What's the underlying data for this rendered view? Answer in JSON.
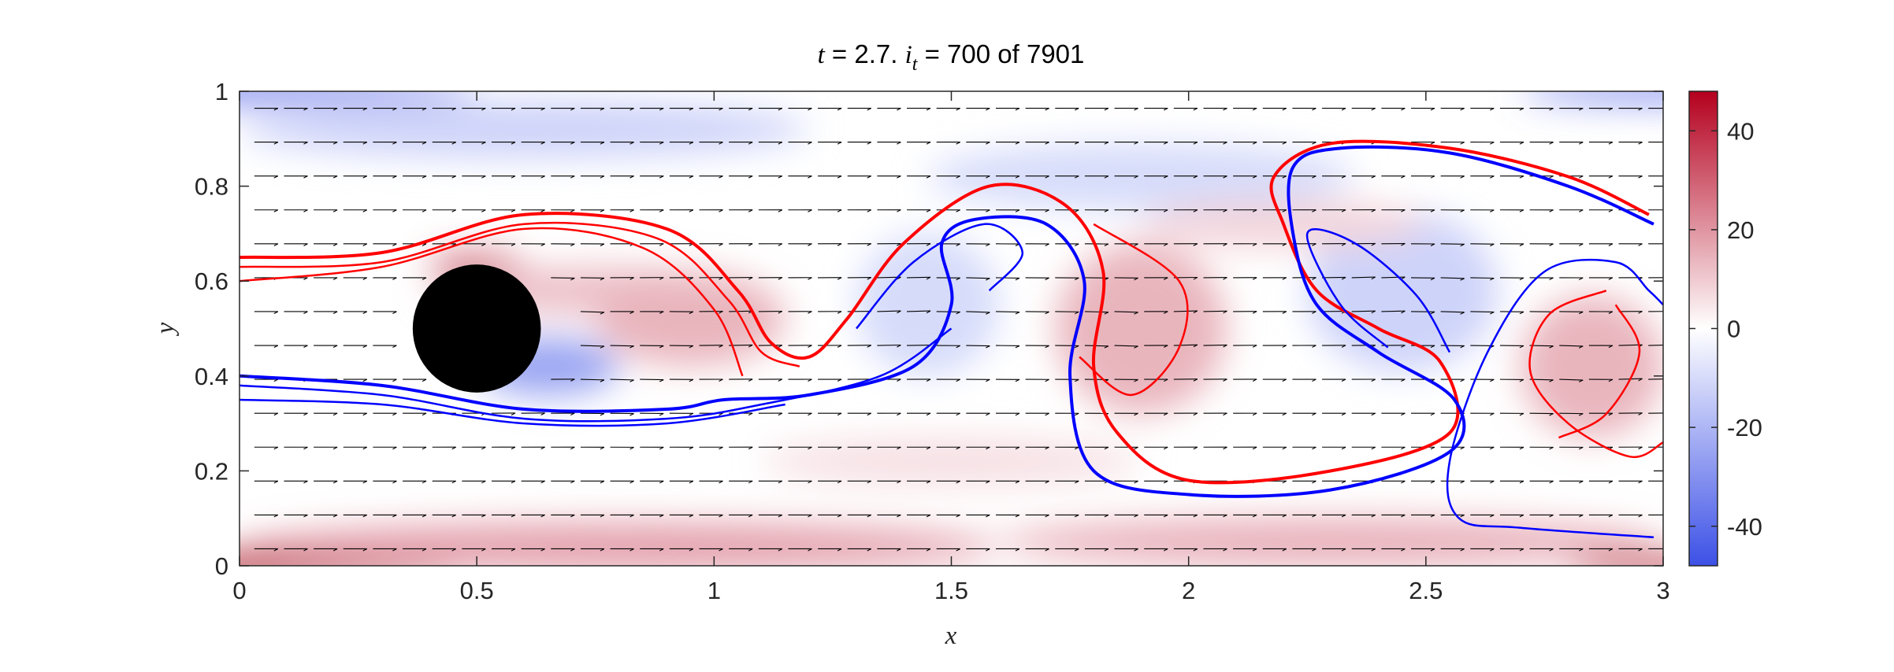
{
  "chart_data": {
    "type": "heatmap",
    "title": {
      "t_symbol": "t",
      "t_value": " = 2.7.  ",
      "it_symbol": "i",
      "it_subscript": "t",
      "it_value": " = 700 of 7901"
    },
    "xlabel": "x",
    "ylabel": "y",
    "xlim": [
      0,
      3
    ],
    "ylim": [
      0,
      1
    ],
    "xticks": [
      0,
      0.5,
      1,
      1.5,
      2,
      2.5,
      3
    ],
    "xtick_labels": [
      "0",
      "0.5",
      "1",
      "1.5",
      "2",
      "2.5",
      "3"
    ],
    "yticks": [
      0,
      0.2,
      0.4,
      0.6,
      0.8,
      1
    ],
    "ytick_labels": [
      "0",
      "0.2",
      "0.4",
      "0.6",
      "0.8",
      "1"
    ],
    "colorbar": {
      "range": [
        -48,
        48
      ],
      "ticks": [
        -40,
        -20,
        0,
        20,
        40
      ],
      "tick_labels": [
        "-40",
        "-20",
        "0",
        "20",
        "40"
      ],
      "colormap": [
        "#3c50e6",
        "#ffffff",
        "#b4001e"
      ]
    },
    "obstacle": {
      "shape": "circle",
      "center": [
        0.5,
        0.5
      ],
      "radius": 0.135,
      "color": "#000000"
    },
    "vorticity_field": [
      {
        "x": 0.0,
        "y": 1.0,
        "rx": 0.5,
        "ry": 0.02,
        "w": -45
      },
      {
        "x": 0.6,
        "y": 0.92,
        "rx": 0.6,
        "ry": 0.06,
        "w": -12
      },
      {
        "x": 1.9,
        "y": 0.82,
        "rx": 0.45,
        "ry": 0.07,
        "w": -10
      },
      {
        "x": 3.0,
        "y": 1.0,
        "rx": 0.3,
        "ry": 0.02,
        "w": -35
      },
      {
        "x": 0.0,
        "y": 0.0,
        "rx": 0.5,
        "ry": 0.025,
        "w": 48
      },
      {
        "x": 0.8,
        "y": 0.04,
        "rx": 0.8,
        "ry": 0.05,
        "w": 18
      },
      {
        "x": 2.3,
        "y": 0.05,
        "rx": 0.7,
        "ry": 0.05,
        "w": 15
      },
      {
        "x": 3.0,
        "y": 0.0,
        "rx": 0.2,
        "ry": 0.02,
        "w": 45
      },
      {
        "x": 0.5,
        "y": 0.63,
        "rx": 0.1,
        "ry": 0.025,
        "w": 35
      },
      {
        "x": 0.75,
        "y": 0.58,
        "rx": 0.35,
        "ry": 0.05,
        "w": 12
      },
      {
        "x": 0.65,
        "y": 0.42,
        "rx": 0.15,
        "ry": 0.06,
        "w": -25
      },
      {
        "x": 0.95,
        "y": 0.52,
        "rx": 0.2,
        "ry": 0.1,
        "w": 14
      },
      {
        "x": 1.45,
        "y": 0.55,
        "rx": 0.15,
        "ry": 0.15,
        "w": -10
      },
      {
        "x": 1.9,
        "y": 0.5,
        "rx": 0.18,
        "ry": 0.18,
        "w": 14
      },
      {
        "x": 2.45,
        "y": 0.58,
        "rx": 0.2,
        "ry": 0.17,
        "w": -12
      },
      {
        "x": 2.85,
        "y": 0.42,
        "rx": 0.15,
        "ry": 0.15,
        "w": 14
      },
      {
        "x": 2.2,
        "y": 0.72,
        "rx": 0.3,
        "ry": 0.05,
        "w": 8
      },
      {
        "x": 1.5,
        "y": 0.22,
        "rx": 0.4,
        "ry": 0.05,
        "w": 6
      }
    ],
    "series": [
      {
        "color": "#ff0000",
        "lines": [
          [
            [
              0,
              0.65
            ],
            [
              0.3,
              0.66
            ],
            [
              0.6,
              0.74
            ],
            [
              0.9,
              0.71
            ],
            [
              1.05,
              0.58
            ],
            [
              1.12,
              0.47
            ],
            [
              1.2,
              0.44
            ],
            [
              1.28,
              0.52
            ],
            [
              1.4,
              0.68
            ],
            [
              1.58,
              0.8
            ],
            [
              1.74,
              0.76
            ],
            [
              1.82,
              0.62
            ],
            [
              1.8,
              0.42
            ],
            [
              1.85,
              0.28
            ],
            [
              2.0,
              0.18
            ],
            [
              2.3,
              0.2
            ],
            [
              2.55,
              0.28
            ],
            [
              2.53,
              0.43
            ],
            [
              2.4,
              0.5
            ],
            [
              2.27,
              0.58
            ],
            [
              2.2,
              0.72
            ],
            [
              2.18,
              0.82
            ],
            [
              2.3,
              0.89
            ],
            [
              2.55,
              0.88
            ],
            [
              2.8,
              0.82
            ],
            [
              2.97,
              0.74
            ]
          ],
          [
            [
              0,
              0.63
            ],
            [
              0.3,
              0.64
            ],
            [
              0.6,
              0.72
            ],
            [
              0.88,
              0.69
            ],
            [
              1.03,
              0.56
            ],
            [
              1.1,
              0.45
            ],
            [
              1.18,
              0.42
            ]
          ],
          [
            [
              0,
              0.6
            ],
            [
              0.3,
              0.63
            ],
            [
              0.6,
              0.71
            ],
            [
              0.85,
              0.67
            ],
            [
              1.0,
              0.54
            ],
            [
              1.06,
              0.4
            ]
          ],
          [
            [
              1.8,
              0.72
            ],
            [
              1.98,
              0.6
            ],
            [
              1.98,
              0.46
            ],
            [
              1.88,
              0.36
            ],
            [
              1.77,
              0.44
            ]
          ],
          [
            [
              2.88,
              0.58
            ],
            [
              2.76,
              0.53
            ],
            [
              2.72,
              0.41
            ],
            [
              2.8,
              0.3
            ],
            [
              2.93,
              0.23
            ],
            [
              3.0,
              0.26
            ]
          ],
          [
            [
              2.9,
              0.55
            ],
            [
              2.95,
              0.45
            ],
            [
              2.88,
              0.32
            ],
            [
              2.78,
              0.27
            ]
          ]
        ]
      },
      {
        "color": "#0000ff",
        "lines": [
          [
            [
              0,
              0.4
            ],
            [
              0.3,
              0.38
            ],
            [
              0.6,
              0.33
            ],
            [
              0.9,
              0.33
            ],
            [
              1.02,
              0.35
            ],
            [
              1.2,
              0.36
            ],
            [
              1.42,
              0.42
            ],
            [
              1.5,
              0.55
            ],
            [
              1.48,
              0.68
            ],
            [
              1.55,
              0.73
            ],
            [
              1.7,
              0.72
            ],
            [
              1.78,
              0.6
            ],
            [
              1.75,
              0.4
            ],
            [
              1.8,
              0.2
            ],
            [
              2.0,
              0.15
            ],
            [
              2.3,
              0.16
            ],
            [
              2.55,
              0.24
            ],
            [
              2.56,
              0.35
            ],
            [
              2.4,
              0.45
            ],
            [
              2.27,
              0.55
            ],
            [
              2.22,
              0.7
            ],
            [
              2.22,
              0.84
            ],
            [
              2.32,
              0.88
            ],
            [
              2.55,
              0.87
            ],
            [
              2.8,
              0.8
            ],
            [
              2.98,
              0.72
            ]
          ],
          [
            [
              0,
              0.38
            ],
            [
              0.3,
              0.36
            ],
            [
              0.6,
              0.31
            ],
            [
              0.9,
              0.31
            ],
            [
              1.1,
              0.34
            ],
            [
              1.35,
              0.4
            ],
            [
              1.5,
              0.5
            ]
          ],
          [
            [
              0,
              0.35
            ],
            [
              0.3,
              0.34
            ],
            [
              0.6,
              0.3
            ],
            [
              0.9,
              0.3
            ],
            [
              1.15,
              0.34
            ]
          ],
          [
            [
              1.3,
              0.5
            ],
            [
              1.42,
              0.64
            ],
            [
              1.57,
              0.72
            ],
            [
              1.65,
              0.66
            ],
            [
              1.58,
              0.58
            ]
          ],
          [
            [
              2.98,
              0.06
            ],
            [
              2.7,
              0.08
            ],
            [
              2.57,
              0.1
            ],
            [
              2.55,
              0.22
            ],
            [
              2.63,
              0.45
            ],
            [
              2.75,
              0.62
            ],
            [
              2.9,
              0.64
            ],
            [
              2.97,
              0.58
            ],
            [
              3.0,
              0.55
            ]
          ],
          [
            [
              2.55,
              0.45
            ],
            [
              2.48,
              0.57
            ],
            [
              2.35,
              0.68
            ],
            [
              2.25,
              0.7
            ],
            [
              2.32,
              0.55
            ],
            [
              2.42,
              0.46
            ]
          ]
        ]
      }
    ],
    "quiver": {
      "color": "#000000",
      "rows": 14,
      "cols": 48
    }
  }
}
